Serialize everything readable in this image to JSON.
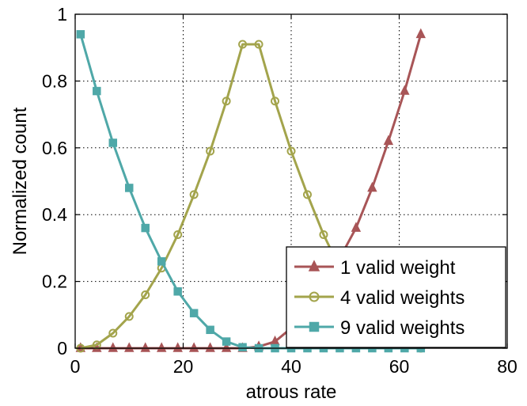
{
  "chart_data": {
    "type": "line",
    "xlabel": "atrous rate",
    "ylabel": "Normalized count",
    "xlim": [
      0,
      80
    ],
    "ylim": [
      0,
      1
    ],
    "xticks": [
      "0",
      "20",
      "40",
      "60",
      "80"
    ],
    "yticks": [
      "0",
      "0.2",
      "0.4",
      "0.6",
      "0.8",
      "1"
    ],
    "grid": true,
    "legend_position": "bottom-right",
    "x": [
      1,
      4,
      7,
      10,
      13,
      16,
      19,
      22,
      25,
      28,
      31,
      34,
      37,
      40,
      43,
      46,
      49,
      52,
      55,
      58,
      61,
      64
    ],
    "series": [
      {
        "name": "1 valid weight",
        "color": "#a85557",
        "marker": "triangle",
        "values": [
          0,
          0,
          0,
          0,
          0,
          0,
          0,
          0,
          0,
          0,
          0,
          0.005,
          0.02,
          0.06,
          0.12,
          0.19,
          0.27,
          0.36,
          0.48,
          0.62,
          0.77,
          0.94
        ]
      },
      {
        "name": "4 valid weights",
        "color": "#a3a44c",
        "marker": "circle",
        "values": [
          0,
          0.01,
          0.045,
          0.095,
          0.16,
          0.24,
          0.34,
          0.46,
          0.59,
          0.74,
          0.91,
          0.91,
          0.74,
          0.59,
          0.46,
          0.34,
          0.24,
          0.16,
          0.095,
          0.045,
          0.01,
          0
        ]
      },
      {
        "name": "9 valid weights",
        "color": "#4fa8a8",
        "marker": "square",
        "values": [
          0.94,
          0.77,
          0.615,
          0.48,
          0.36,
          0.26,
          0.17,
          0.105,
          0.055,
          0.02,
          0.003,
          0,
          0,
          0,
          0,
          0,
          0,
          0,
          0,
          0,
          0,
          0
        ]
      }
    ]
  }
}
